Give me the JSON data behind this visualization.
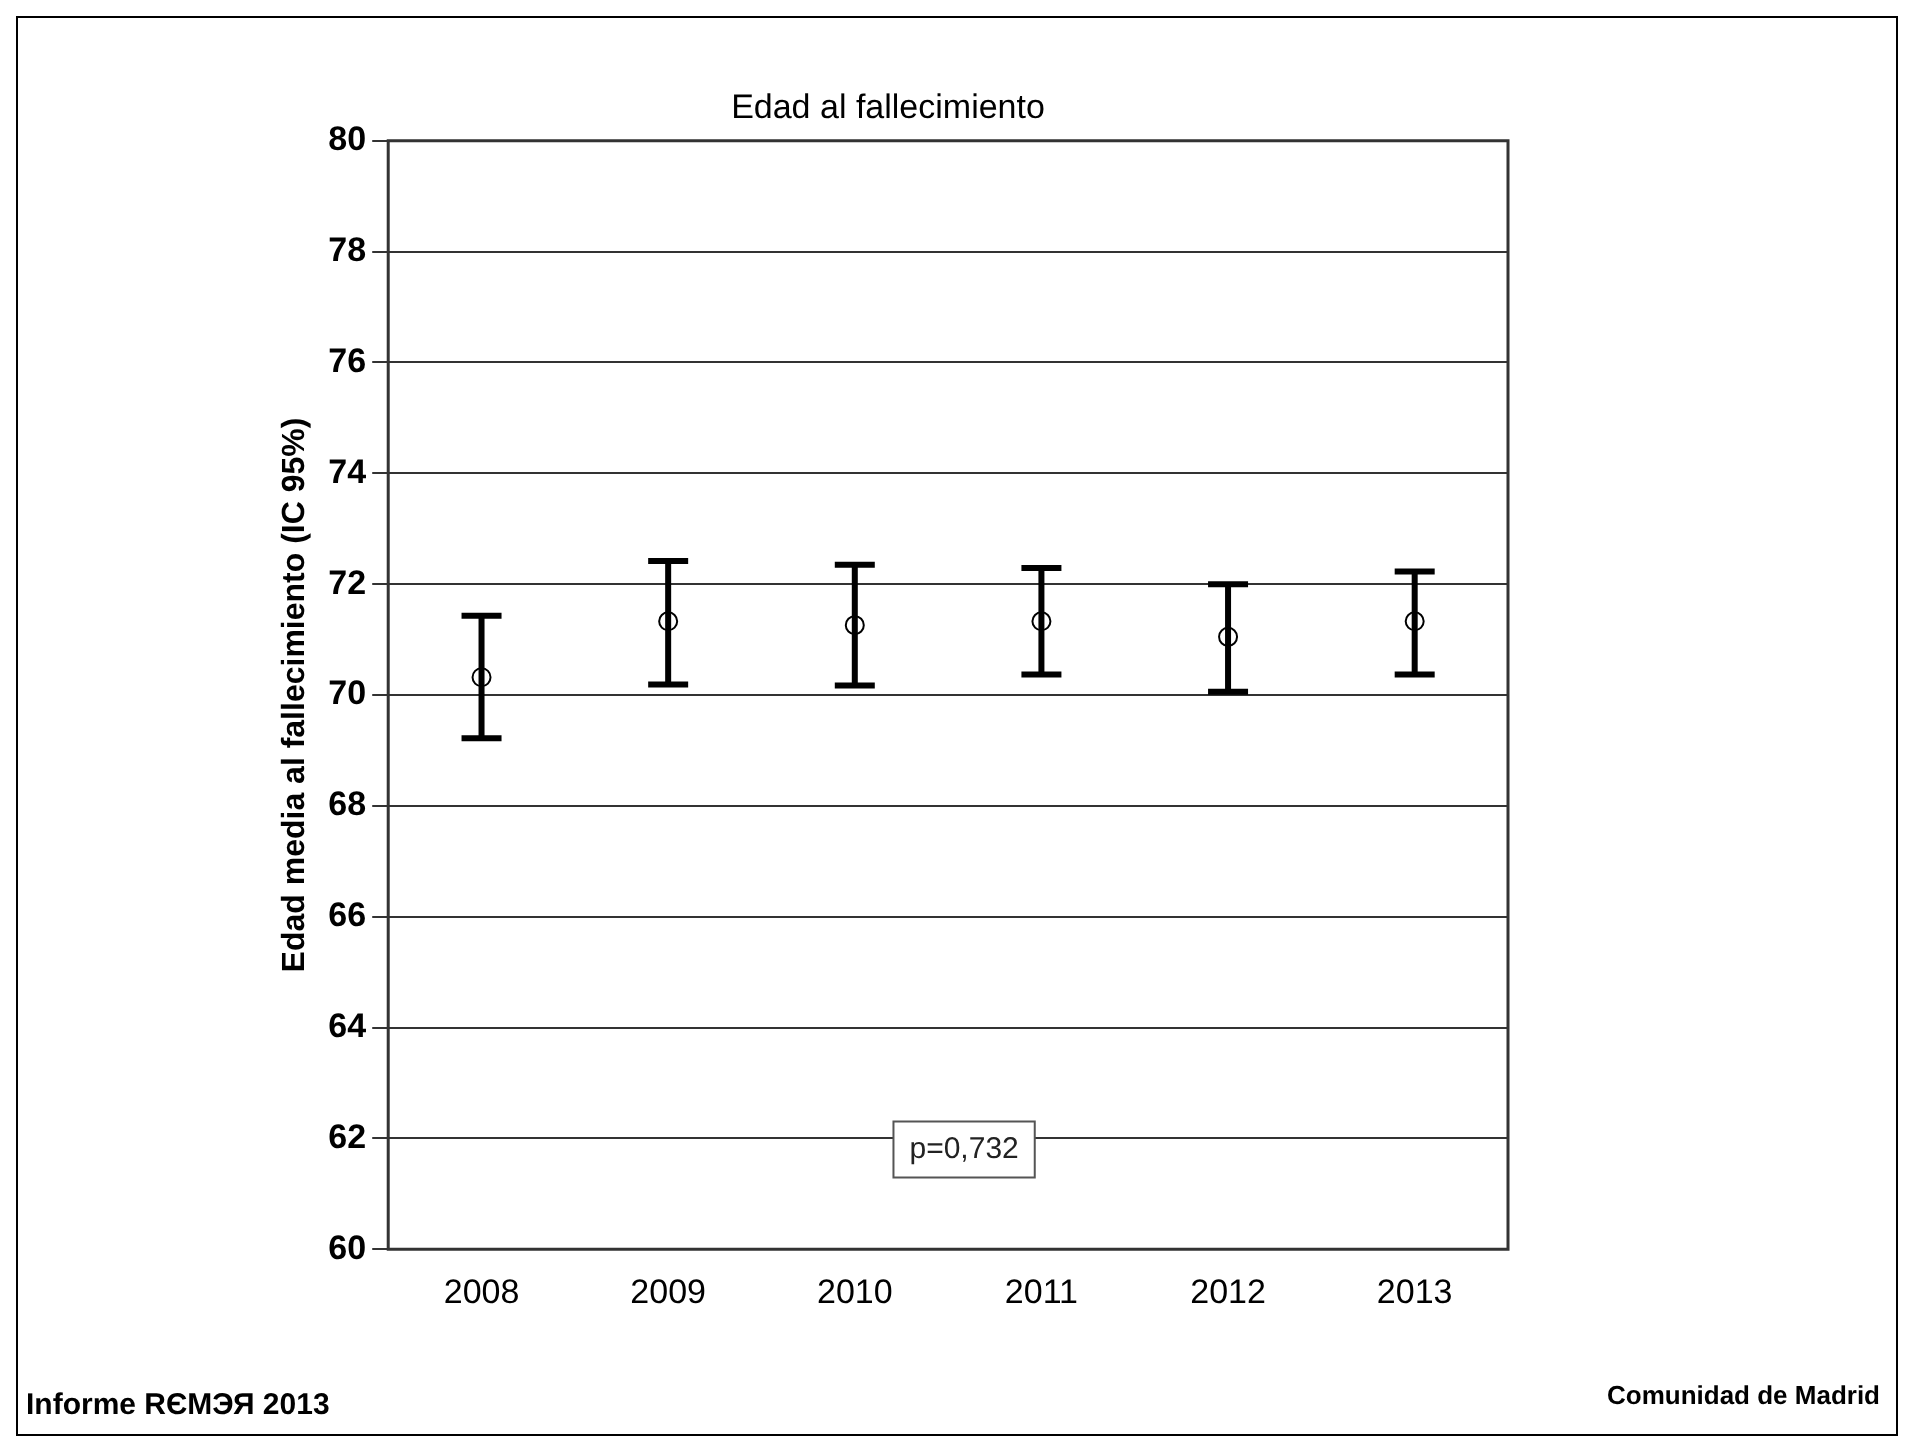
{
  "chart_data": {
    "type": "scatter",
    "title": "Edad al fallecimiento",
    "ylabel": "Edad media al fallecimiento (IC 95%)",
    "categories": [
      "2008",
      "2009",
      "2010",
      "2011",
      "2012",
      "2013"
    ],
    "series": [
      {
        "color": "#000000",
        "values": [
          70.32,
          71.33,
          71.26,
          71.33,
          71.05,
          71.33
        ],
        "errors": [
          [
            69.22,
            71.43
          ],
          [
            70.19,
            72.42
          ],
          [
            70.17,
            72.35
          ],
          [
            70.37,
            72.29
          ],
          [
            70.06,
            72.0
          ],
          [
            70.37,
            72.23
          ]
        ]
      }
    ],
    "ylim": [
      60,
      80
    ],
    "yticks": [
      60,
      62,
      64,
      66,
      68,
      70,
      72,
      74,
      76,
      78,
      80
    ],
    "grid": "y",
    "legend": false,
    "marker": "circle",
    "annotations": [
      "p=0,732",
      "Informe RЄМЭЯ 2013",
      "Comunidad de Madrid"
    ]
  }
}
